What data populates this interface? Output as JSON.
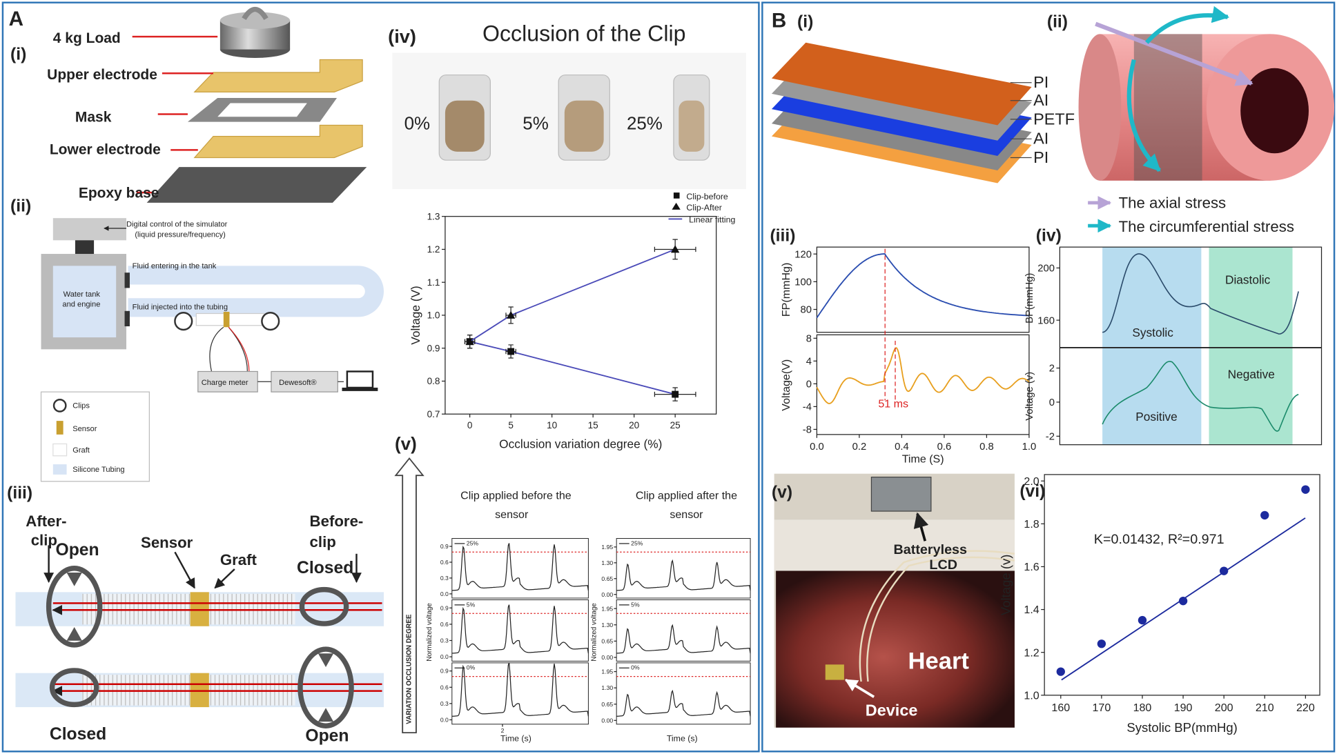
{
  "panel_a": {
    "label": "A",
    "i": {
      "label": "(i)",
      "load": "4 kg Load",
      "upper": "Upper electrode",
      "mask": "Mask",
      "lower": "Lower electrode",
      "base": "Epoxy base"
    },
    "ii": {
      "label": "(ii)",
      "control": "Digital control of the simulator",
      "control_note": "(liquid pressure/frequency)",
      "fluid_in": "Fluid entering in the tank",
      "tank": [
        "Water tank",
        "and engine"
      ],
      "fluid_injected": "Fluid injected into the tubing",
      "charge_meter": "Charge meter",
      "dewesoft": "Dewesoft®",
      "legend": [
        "Clips",
        "Sensor",
        "Graft",
        "Silicone Tubing"
      ]
    },
    "iii": {
      "label": "(iii)",
      "after_clip": [
        "After-",
        "clip"
      ],
      "before_clip": [
        "Before-",
        "clip"
      ],
      "sensor": "Sensor",
      "graft": "Graft",
      "open": "Open",
      "closed": "Closed"
    },
    "iv": {
      "label": "(iv)",
      "title": "Occlusion of the Clip",
      "photos": [
        "0%",
        "5%",
        "25%"
      ],
      "chart_data": {
        "type": "scatter",
        "x_label": "Occlusion variation degree (%)",
        "y_label": "Voltage (V)",
        "xlim": [
          -3,
          30
        ],
        "xticks": [
          0,
          5,
          10,
          15,
          20,
          25
        ],
        "ylim": [
          0.7,
          1.3
        ],
        "yticks": [
          0.7,
          0.8,
          0.9,
          {
            "value": 1,
            "label": "1.0"
          },
          1.1,
          1.2,
          1.3
        ],
        "fit_name": "Linear fitting",
        "fit_color": "#4a4ab8",
        "series": [
          {
            "name": "Clip-before",
            "marker": "square",
            "color": "#111",
            "x": [
              0,
              5,
              25
            ],
            "values": [
              0.92,
              0.89,
              0.76
            ],
            "errors": [
              0.02,
              0.02,
              0.02
            ],
            "x_errors": [
              0.6,
              0.6,
              2.5
            ]
          },
          {
            "name": "Clip-After",
            "marker": "triangle",
            "color": "#111",
            "x": [
              0,
              5,
              25
            ],
            "values": [
              0.92,
              1.0,
              1.2
            ],
            "errors": [
              0.02,
              0.025,
              0.03
            ],
            "x_errors": [
              0.6,
              0.6,
              2.5
            ]
          }
        ]
      }
    },
    "v": {
      "label": "(v)",
      "arrow": "VARIATION  OCCLUSION DEGREE",
      "before_title": [
        "Clip applied before the",
        "sensor"
      ],
      "after_title": [
        "Clip applied after the",
        "sensor"
      ],
      "y_label": "Normalized voltage",
      "x_label": "Time (s)",
      "legends": [
        "25%",
        "5%",
        "0%"
      ],
      "left_yticks": [
        0.9,
        0.6,
        0.3,
        {
          "value": 0,
          "label": "0.0"
        }
      ],
      "left_ylim": [
        -0.08,
        1.05
      ],
      "right_yticks": [
        1.95,
        {
          "value": 1.3,
          "label": "1.30"
        },
        0.65,
        {
          "value": 0,
          "label": "0.00"
        }
      ],
      "right_ylim": [
        -0.15,
        2.3
      ],
      "left_xticks": [
        2
      ]
    }
  },
  "panel_b": {
    "label": "B",
    "i": {
      "label": "(i)",
      "layers": [
        "PI",
        "AI",
        "PETF",
        "AI",
        "PI"
      ]
    },
    "ii": {
      "label": "(ii)",
      "axial": "The axial stress",
      "circ": "The circumferential stress"
    },
    "iii": {
      "label": "(iii)",
      "x_label": "Time (S)",
      "xlim": [
        0,
        1
      ],
      "xticks": [
        {
          "value": 0,
          "label": "0.0"
        },
        0.2,
        0.4,
        0.6,
        0.8,
        {
          "value": 1,
          "label": "1.0"
        }
      ],
      "fp_label": "FP(mmHg)",
      "fp_ylim": [
        63.5,
        125
      ],
      "fp_yticks": [
        80,
        100,
        120
      ],
      "v_label": "Voltage(V)",
      "v_ylim": [
        -8.9,
        8.6
      ],
      "v_yticks": [
        -8,
        -4,
        0,
        4,
        8
      ],
      "delay": "51 ms"
    },
    "iv": {
      "label": "(iv)",
      "bp_label": "BP(mmHg)",
      "bp_ylim": [
        139,
        216
      ],
      "bp_yticks": [
        160,
        200
      ],
      "v_label": "Voltage (v)",
      "v_ylim": [
        -2.5,
        3.2
      ],
      "v_yticks": [
        -2,
        0,
        2
      ],
      "systolic": "Systolic",
      "diastolic": "Diastolic",
      "positive": "Positive",
      "negative": "Negative"
    },
    "v": {
      "label": "(v)",
      "lcd": [
        "Batteryless",
        "LCD"
      ],
      "heart": "Heart",
      "device": "Device"
    },
    "vi": {
      "label": "(vi)",
      "chart_data": {
        "type": "scatter",
        "x_label": "Systolic BP(mmHg)",
        "y_label": "Voltage (v)",
        "annotation": "K=0.01432, R²=0.971",
        "xlim": [
          156,
          223.5
        ],
        "xticks": [
          160,
          170,
          180,
          190,
          200,
          210,
          220
        ],
        "ylim": [
          1.0,
          2.03
        ],
        "yticks": [
          {
            "value": 1,
            "label": "1.0"
          },
          1.2,
          1.4,
          1.6,
          1.8,
          {
            "value": 2,
            "label": "2.0"
          }
        ],
        "series": [
          {
            "color": "#1c2a9e",
            "x": [
              160,
              170,
              180,
              190,
              200,
              210,
              220
            ],
            "values": [
              1.11,
              1.24,
              1.35,
              1.44,
              1.58,
              1.84,
              1.96
            ]
          }
        ]
      }
    }
  }
}
